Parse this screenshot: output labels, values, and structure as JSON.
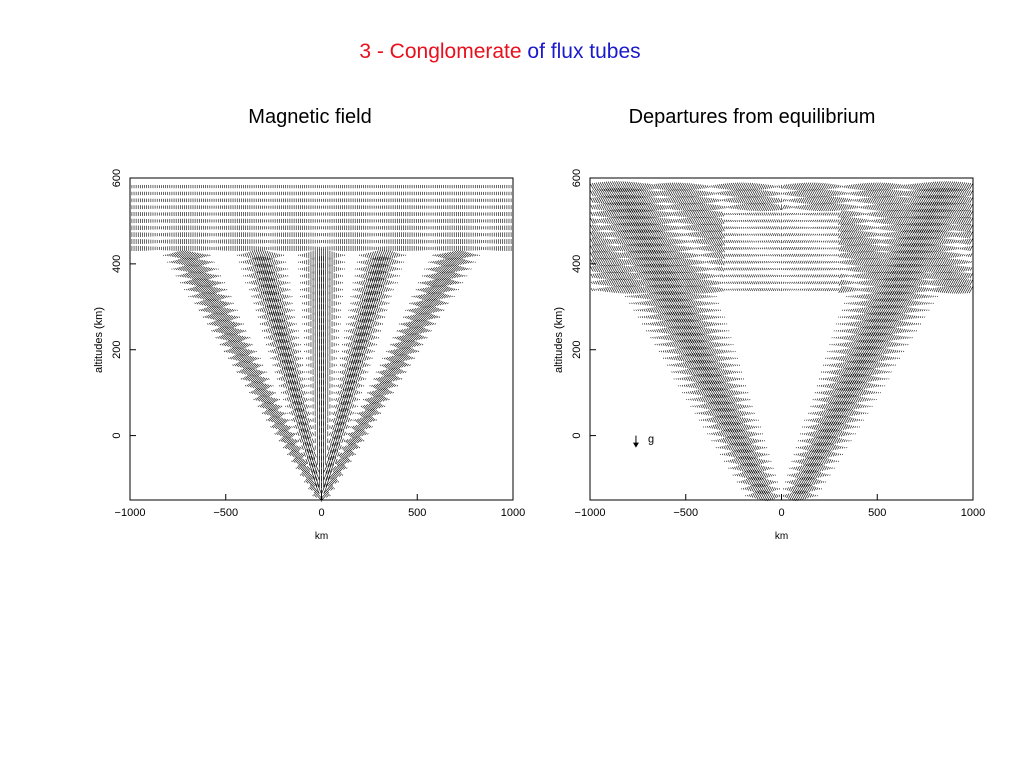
{
  "title": {
    "part1": "3 - Conglomerate",
    "part2": "of flux tubes"
  },
  "panels": [
    {
      "subtitle": "Magnetic field",
      "xlabel": "km",
      "ylabel": "altitudes (km)",
      "xlim": [
        -1000,
        1000
      ],
      "ylim": [
        -150,
        600
      ],
      "xticks": [
        {
          "value": -1000,
          "label": "−1000"
        },
        {
          "value": -500,
          "label": "−500"
        },
        0,
        500,
        1000
      ],
      "yticks": [
        0,
        200,
        400,
        600
      ]
    },
    {
      "subtitle": "Departures from equilibrium",
      "xlabel": "km",
      "ylabel": "altitudes (km)",
      "xlim": [
        -1000,
        1000
      ],
      "ylim": [
        -150,
        600
      ],
      "xticks": [
        {
          "value": -1000,
          "label": "−1000"
        },
        {
          "value": -500,
          "label": "−500"
        },
        0,
        500,
        1000
      ],
      "yticks": [
        0,
        200,
        400,
        600
      ],
      "annotation": "g"
    }
  ]
}
